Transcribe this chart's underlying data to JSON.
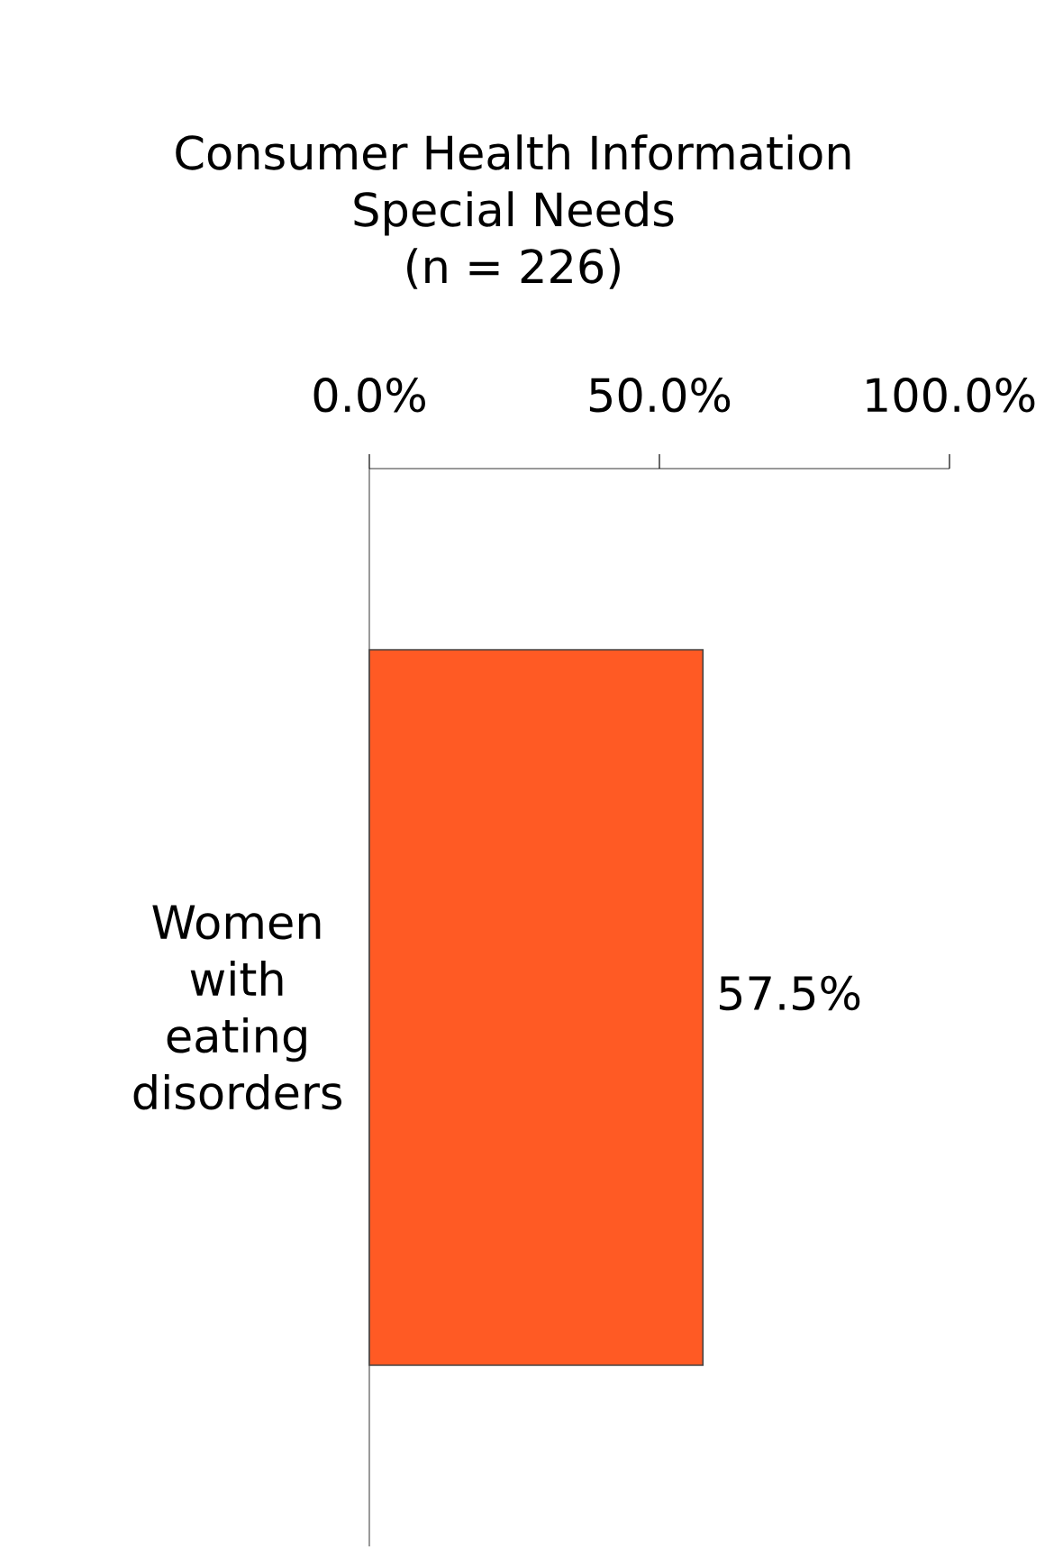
{
  "chart_data": {
    "type": "bar",
    "orientation": "horizontal",
    "title": "Consumer Health Information Special Needs",
    "subtitle": "(n = 226)",
    "categories": [
      "Women with eating disorders"
    ],
    "values": [
      57.5
    ],
    "value_labels": [
      "57.5%"
    ],
    "color": "#ff5a24",
    "xlim": [
      0,
      100
    ],
    "xticks": [
      {
        "value": 0,
        "label": "0.0%"
      },
      {
        "value": 50,
        "label": "50.0%"
      },
      {
        "value": 100,
        "label": "100.0%"
      }
    ]
  }
}
